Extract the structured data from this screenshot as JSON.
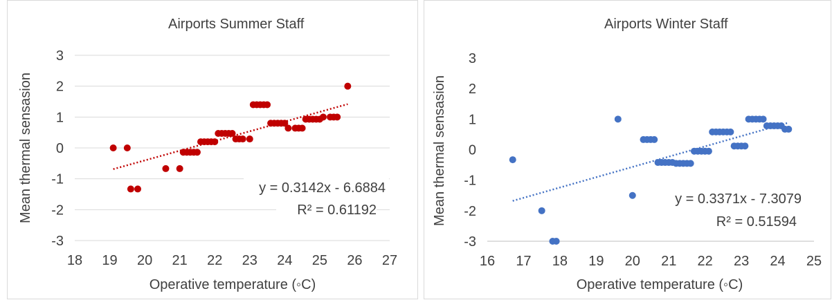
{
  "chart_data": [
    {
      "type": "scatter",
      "title": "Airports Summer Staff",
      "xlabel": "Operative temperature (◦C)",
      "ylabel": "Mean thermal sensasion",
      "xlim": [
        18,
        27
      ],
      "ylim": [
        -3,
        3
      ],
      "xticks": [
        "18",
        "19",
        "20",
        "21",
        "22",
        "23",
        "24",
        "25",
        "26",
        "27"
      ],
      "yticks": [
        "-3",
        "-2",
        "-1",
        "0",
        "1",
        "2",
        "3"
      ],
      "grid": true,
      "series": [
        {
          "color": "#c00000",
          "points": [
            [
              19.1,
              0.0
            ],
            [
              19.5,
              0.0
            ],
            [
              19.6,
              -1.33
            ],
            [
              19.8,
              -1.33
            ],
            [
              20.6,
              -0.67
            ],
            [
              21.0,
              -0.67
            ],
            [
              21.1,
              -0.14
            ],
            [
              21.2,
              -0.14
            ],
            [
              21.3,
              -0.14
            ],
            [
              21.4,
              -0.14
            ],
            [
              21.5,
              -0.14
            ],
            [
              21.6,
              0.2
            ],
            [
              21.7,
              0.2
            ],
            [
              21.8,
              0.2
            ],
            [
              21.9,
              0.2
            ],
            [
              22.0,
              0.2
            ],
            [
              22.1,
              0.47
            ],
            [
              22.2,
              0.47
            ],
            [
              22.3,
              0.47
            ],
            [
              22.4,
              0.47
            ],
            [
              22.5,
              0.47
            ],
            [
              22.6,
              0.29
            ],
            [
              22.7,
              0.29
            ],
            [
              22.8,
              0.29
            ],
            [
              23.0,
              0.29
            ],
            [
              23.1,
              1.4
            ],
            [
              23.2,
              1.4
            ],
            [
              23.3,
              1.4
            ],
            [
              23.4,
              1.4
            ],
            [
              23.5,
              1.4
            ],
            [
              23.6,
              0.8
            ],
            [
              23.7,
              0.8
            ],
            [
              23.8,
              0.8
            ],
            [
              23.9,
              0.8
            ],
            [
              24.0,
              0.8
            ],
            [
              24.1,
              0.64
            ],
            [
              24.3,
              0.64
            ],
            [
              24.4,
              0.64
            ],
            [
              24.5,
              0.64
            ],
            [
              24.6,
              0.93
            ],
            [
              24.7,
              0.93
            ],
            [
              24.8,
              0.93
            ],
            [
              24.9,
              0.93
            ],
            [
              25.0,
              0.93
            ],
            [
              25.1,
              1.0
            ],
            [
              25.3,
              1.0
            ],
            [
              25.4,
              1.0
            ],
            [
              25.5,
              1.0
            ],
            [
              25.8,
              2.0
            ]
          ]
        }
      ],
      "trendline": {
        "slope": 0.3142,
        "intercept": -6.6884,
        "x": [
          19.1,
          25.8
        ]
      },
      "annotations": [
        "y = 0.3142x - 6.6884",
        "R² = 0.61192"
      ]
    },
    {
      "type": "scatter",
      "title": "Airports Winter Staff",
      "xlabel": "Operative temperature (◦C)",
      "ylabel": "Mean thermal sensasion",
      "xlim": [
        16,
        25
      ],
      "ylim": [
        -3,
        3
      ],
      "xticks": [
        "16",
        "17",
        "18",
        "19",
        "20",
        "21",
        "22",
        "23",
        "24",
        "25"
      ],
      "yticks": [
        "-3",
        "-2",
        "-1",
        "0",
        "1",
        "2",
        "3"
      ],
      "grid": false,
      "series": [
        {
          "color": "#4472c4",
          "points": [
            [
              16.7,
              -0.33
            ],
            [
              17.5,
              -2.0
            ],
            [
              17.8,
              -3.0
            ],
            [
              17.9,
              -3.0
            ],
            [
              19.6,
              1.0
            ],
            [
              20.0,
              -1.5
            ],
            [
              20.3,
              0.33
            ],
            [
              20.4,
              0.33
            ],
            [
              20.5,
              0.33
            ],
            [
              20.6,
              0.33
            ],
            [
              20.7,
              -0.42
            ],
            [
              20.8,
              -0.42
            ],
            [
              20.9,
              -0.42
            ],
            [
              21.0,
              -0.42
            ],
            [
              21.1,
              -0.42
            ],
            [
              21.2,
              -0.45
            ],
            [
              21.3,
              -0.45
            ],
            [
              21.4,
              -0.45
            ],
            [
              21.5,
              -0.45
            ],
            [
              21.6,
              -0.45
            ],
            [
              21.7,
              -0.05
            ],
            [
              21.8,
              -0.05
            ],
            [
              21.9,
              -0.05
            ],
            [
              22.0,
              -0.05
            ],
            [
              22.1,
              -0.05
            ],
            [
              22.2,
              0.58
            ],
            [
              22.3,
              0.58
            ],
            [
              22.4,
              0.58
            ],
            [
              22.5,
              0.58
            ],
            [
              22.6,
              0.58
            ],
            [
              22.7,
              0.58
            ],
            [
              22.8,
              0.12
            ],
            [
              22.9,
              0.12
            ],
            [
              23.0,
              0.12
            ],
            [
              23.1,
              0.12
            ],
            [
              23.2,
              1.0
            ],
            [
              23.3,
              1.0
            ],
            [
              23.4,
              1.0
            ],
            [
              23.5,
              1.0
            ],
            [
              23.6,
              1.0
            ],
            [
              23.7,
              0.78
            ],
            [
              23.8,
              0.78
            ],
            [
              23.9,
              0.78
            ],
            [
              24.0,
              0.78
            ],
            [
              24.1,
              0.78
            ],
            [
              24.2,
              0.67
            ],
            [
              24.3,
              0.67
            ]
          ]
        }
      ],
      "trendline": {
        "slope": 0.3371,
        "intercept": -7.3079,
        "x": [
          16.7,
          24.3
        ]
      },
      "annotations": [
        "y = 0.3371x - 7.3079",
        "R² = 0.51594"
      ]
    }
  ]
}
